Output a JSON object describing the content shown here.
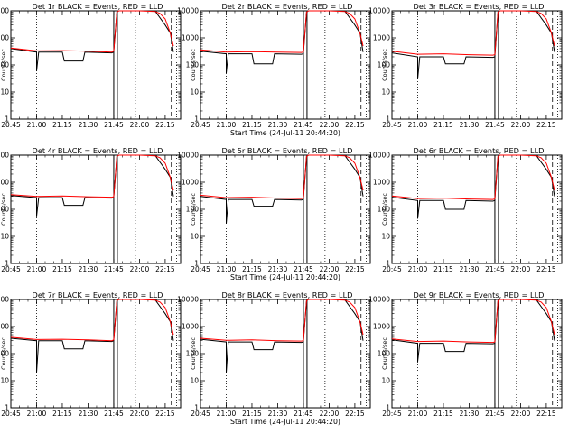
{
  "chart_data": [
    {
      "type": "line",
      "title": "Det 1r BLACK = Events, RED = LLD",
      "xlabel": "",
      "ylabel": "Counts/sec",
      "yscale": "log",
      "ylim": [
        1,
        10000
      ],
      "x_ticks": [
        "20:45",
        "21:00",
        "21:15",
        "21:30",
        "21:45",
        "22:00",
        "22:15"
      ],
      "y_ticks": [
        "1",
        "10",
        "100",
        "1000",
        "10000"
      ],
      "series": [
        {
          "name": "Events",
          "color": "#000000",
          "x": [
            20.75,
            21.0,
            21.0,
            21.02,
            21.25,
            21.27,
            21.45,
            21.47,
            21.73,
            21.75,
            21.78,
            21.8,
            22.0,
            22.15,
            22.25,
            22.3,
            22.33
          ],
          "y": [
            400,
            300,
            60,
            300,
            300,
            140,
            140,
            300,
            280,
            300,
            9000,
            10000,
            10000,
            10000,
            3000,
            1500,
            300
          ]
        },
        {
          "name": "LLD",
          "color": "#ff0000",
          "x": [
            20.75,
            21.0,
            21.25,
            21.5,
            21.73,
            21.75,
            21.78,
            21.8,
            22.0,
            22.15,
            22.2,
            22.25,
            22.3,
            22.33
          ],
          "y": [
            420,
            330,
            340,
            320,
            300,
            320,
            9000,
            10000,
            10000,
            9500,
            8000,
            5000,
            1500,
            500
          ]
        }
      ]
    },
    {
      "type": "line",
      "title": "Det 2r BLACK = Events, RED = LLD",
      "xlabel": "Start Time (24-Jul-11 20:44:20)",
      "ylabel": "Counts/sec",
      "yscale": "log",
      "ylim": [
        1,
        10000
      ],
      "x_ticks": [
        "20:45",
        "21:00",
        "21:15",
        "21:30",
        "21:45",
        "22:00",
        "22:15"
      ],
      "y_ticks": [
        "1",
        "10",
        "100",
        "1000",
        "10000"
      ],
      "series": [
        {
          "name": "Events",
          "color": "#000000",
          "x": [
            20.75,
            21.0,
            21.0,
            21.02,
            21.25,
            21.27,
            21.45,
            21.47,
            21.73,
            21.75,
            21.78,
            21.8,
            22.0,
            22.15,
            22.25,
            22.3,
            22.33
          ],
          "y": [
            320,
            260,
            50,
            260,
            260,
            110,
            110,
            260,
            250,
            260,
            9000,
            10000,
            10000,
            10000,
            3000,
            1500,
            300
          ]
        },
        {
          "name": "LLD",
          "color": "#ff0000",
          "x": [
            20.75,
            21.0,
            21.25,
            21.5,
            21.73,
            21.75,
            21.78,
            21.8,
            22.0,
            22.15,
            22.2,
            22.25,
            22.3,
            22.33
          ],
          "y": [
            360,
            300,
            310,
            300,
            290,
            300,
            9000,
            10000,
            10000,
            9500,
            8000,
            5000,
            1500,
            500
          ]
        }
      ]
    },
    {
      "type": "line",
      "title": "Det 3r BLACK = Events, RED = LLD",
      "xlabel": "",
      "ylabel": "Counts/sec",
      "yscale": "log",
      "ylim": [
        1,
        10000
      ],
      "x_ticks": [
        "20:45",
        "21:00",
        "21:15",
        "21:30",
        "21:45",
        "22:00",
        "22:15"
      ],
      "y_ticks": [
        "1",
        "10",
        "100",
        "1000",
        "10000"
      ],
      "series": [
        {
          "name": "Events",
          "color": "#000000",
          "x": [
            20.75,
            21.0,
            21.0,
            21.02,
            21.25,
            21.27,
            21.45,
            21.47,
            21.73,
            21.75,
            21.78,
            21.8,
            22.0,
            22.15,
            22.25,
            22.3,
            22.33
          ],
          "y": [
            280,
            200,
            30,
            200,
            200,
            110,
            110,
            200,
            190,
            200,
            9000,
            10000,
            10000,
            10000,
            3000,
            1500,
            300
          ]
        },
        {
          "name": "LLD",
          "color": "#ff0000",
          "x": [
            20.75,
            21.0,
            21.25,
            21.5,
            21.73,
            21.75,
            21.78,
            21.8,
            22.0,
            22.15,
            22.2,
            22.25,
            22.3,
            22.33
          ],
          "y": [
            320,
            250,
            260,
            240,
            230,
            240,
            9000,
            10000,
            10000,
            9500,
            8000,
            5000,
            1500,
            500
          ]
        }
      ]
    },
    {
      "type": "line",
      "title": "Det 4r BLACK = Events, RED = LLD",
      "xlabel": "",
      "ylabel": "Counts/sec",
      "yscale": "log",
      "ylim": [
        1,
        10000
      ],
      "x_ticks": [
        "20:45",
        "21:00",
        "21:15",
        "21:30",
        "21:45",
        "22:00",
        "22:15"
      ],
      "y_ticks": [
        "1",
        "10",
        "100",
        "1000",
        "10000"
      ],
      "series": [
        {
          "name": "Events",
          "color": "#000000",
          "x": [
            20.75,
            21.0,
            21.0,
            21.02,
            21.25,
            21.27,
            21.45,
            21.47,
            21.73,
            21.75,
            21.78,
            21.8,
            22.0,
            22.15,
            22.25,
            22.3,
            22.33
          ],
          "y": [
            320,
            270,
            55,
            270,
            270,
            140,
            140,
            270,
            260,
            270,
            9000,
            10000,
            10000,
            10000,
            3000,
            1500,
            300
          ]
        },
        {
          "name": "LLD",
          "color": "#ff0000",
          "x": [
            20.75,
            21.0,
            21.25,
            21.5,
            21.73,
            21.75,
            21.78,
            21.8,
            22.0,
            22.15,
            22.2,
            22.25,
            22.3,
            22.33
          ],
          "y": [
            350,
            300,
            310,
            290,
            280,
            290,
            9000,
            10000,
            10000,
            9500,
            8000,
            5000,
            1500,
            500
          ]
        }
      ]
    },
    {
      "type": "line",
      "title": "Det 5r BLACK = Events, RED = LLD",
      "xlabel": "Start Time (24-Jul-11 20:44:20)",
      "ylabel": "Counts/sec",
      "yscale": "log",
      "ylim": [
        1,
        10000
      ],
      "x_ticks": [
        "20:45",
        "21:00",
        "21:15",
        "21:30",
        "21:45",
        "22:00",
        "22:15"
      ],
      "y_ticks": [
        "1",
        "10",
        "100",
        "1000",
        "10000"
      ],
      "series": [
        {
          "name": "Events",
          "color": "#000000",
          "x": [
            20.75,
            21.0,
            21.0,
            21.02,
            21.25,
            21.27,
            21.45,
            21.47,
            21.73,
            21.75,
            21.78,
            21.8,
            22.0,
            22.15,
            22.25,
            22.3,
            22.33
          ],
          "y": [
            300,
            230,
            30,
            230,
            230,
            130,
            130,
            230,
            220,
            230,
            9000,
            10000,
            10000,
            10000,
            3000,
            1500,
            300
          ]
        },
        {
          "name": "LLD",
          "color": "#ff0000",
          "x": [
            20.75,
            21.0,
            21.25,
            21.5,
            21.73,
            21.75,
            21.78,
            21.8,
            22.0,
            22.15,
            22.2,
            22.25,
            22.3,
            22.33
          ],
          "y": [
            330,
            270,
            280,
            260,
            250,
            260,
            9000,
            10000,
            10000,
            9500,
            8000,
            5000,
            1500,
            500
          ]
        }
      ]
    },
    {
      "type": "line",
      "title": "Det 6r BLACK = Events, RED = LLD",
      "xlabel": "",
      "ylabel": "Counts/sec",
      "yscale": "log",
      "ylim": [
        1,
        10000
      ],
      "x_ticks": [
        "20:45",
        "21:00",
        "21:15",
        "21:30",
        "21:45",
        "22:00",
        "22:15"
      ],
      "y_ticks": [
        "1",
        "10",
        "100",
        "1000",
        "10000"
      ],
      "series": [
        {
          "name": "Events",
          "color": "#000000",
          "x": [
            20.75,
            21.0,
            21.0,
            21.02,
            21.25,
            21.27,
            21.45,
            21.47,
            21.73,
            21.75,
            21.78,
            21.8,
            22.0,
            22.15,
            22.25,
            22.3,
            22.33
          ],
          "y": [
            280,
            210,
            45,
            210,
            210,
            100,
            100,
            210,
            200,
            210,
            9000,
            10000,
            10000,
            10000,
            3000,
            1500,
            300
          ]
        },
        {
          "name": "LLD",
          "color": "#ff0000",
          "x": [
            20.75,
            21.0,
            21.25,
            21.5,
            21.73,
            21.75,
            21.78,
            21.8,
            22.0,
            22.15,
            22.2,
            22.25,
            22.3,
            22.33
          ],
          "y": [
            310,
            250,
            260,
            240,
            230,
            240,
            9000,
            10000,
            10000,
            9500,
            8000,
            5000,
            1500,
            500
          ]
        }
      ]
    },
    {
      "type": "line",
      "title": "Det 7r BLACK = Events, RED = LLD",
      "xlabel": "",
      "ylabel": "Counts/sec",
      "yscale": "log",
      "ylim": [
        1,
        10000
      ],
      "x_ticks": [
        "20:45",
        "21:00",
        "21:15",
        "21:30",
        "21:45",
        "22:00",
        "22:15"
      ],
      "y_ticks": [
        "1",
        "10",
        "100",
        "1000",
        "10000"
      ],
      "series": [
        {
          "name": "Events",
          "color": "#000000",
          "x": [
            20.75,
            21.0,
            21.0,
            21.02,
            21.25,
            21.27,
            21.45,
            21.47,
            21.73,
            21.75,
            21.78,
            21.8,
            22.0,
            22.15,
            22.25,
            22.3,
            22.33
          ],
          "y": [
            370,
            300,
            20,
            300,
            300,
            150,
            150,
            300,
            280,
            300,
            9000,
            10000,
            10000,
            10000,
            3000,
            1500,
            300
          ]
        },
        {
          "name": "LLD",
          "color": "#ff0000",
          "x": [
            20.75,
            21.0,
            21.25,
            21.5,
            21.73,
            21.75,
            21.78,
            21.8,
            22.0,
            22.15,
            22.2,
            22.25,
            22.3,
            22.33
          ],
          "y": [
            400,
            330,
            340,
            320,
            300,
            320,
            9000,
            10000,
            10000,
            9500,
            8000,
            5000,
            1500,
            500
          ]
        }
      ]
    },
    {
      "type": "line",
      "title": "Det 8r BLACK = Events, RED = LLD",
      "xlabel": "Start Time (24-Jul-11 20:44:20)",
      "ylabel": "Counts/sec",
      "yscale": "log",
      "ylim": [
        1,
        10000
      ],
      "x_ticks": [
        "20:45",
        "21:00",
        "21:15",
        "21:30",
        "21:45",
        "22:00",
        "22:15"
      ],
      "y_ticks": [
        "1",
        "10",
        "100",
        "1000",
        "10000"
      ],
      "series": [
        {
          "name": "Events",
          "color": "#000000",
          "x": [
            20.75,
            21.0,
            21.0,
            21.02,
            21.25,
            21.27,
            21.45,
            21.47,
            21.73,
            21.75,
            21.78,
            21.8,
            22.0,
            22.15,
            22.25,
            22.3,
            22.33
          ],
          "y": [
            340,
            270,
            20,
            270,
            270,
            140,
            140,
            270,
            260,
            270,
            9000,
            10000,
            10000,
            10000,
            3000,
            1500,
            300
          ]
        },
        {
          "name": "LLD",
          "color": "#ff0000",
          "x": [
            20.75,
            21.0,
            21.25,
            21.5,
            21.73,
            21.75,
            21.78,
            21.8,
            22.0,
            22.15,
            22.2,
            22.25,
            22.3,
            22.33
          ],
          "y": [
            370,
            310,
            320,
            300,
            290,
            300,
            9000,
            10000,
            10000,
            9500,
            8000,
            5000,
            1500,
            500
          ]
        }
      ]
    },
    {
      "type": "line",
      "title": "Det 9r BLACK = Events, RED = LLD",
      "xlabel": "",
      "ylabel": "Counts/sec",
      "yscale": "log",
      "ylim": [
        1,
        10000
      ],
      "x_ticks": [
        "20:45",
        "21:00",
        "21:15",
        "21:30",
        "21:45",
        "22:00",
        "22:15"
      ],
      "y_ticks": [
        "1",
        "10",
        "100",
        "1000",
        "10000"
      ],
      "series": [
        {
          "name": "Events",
          "color": "#000000",
          "x": [
            20.75,
            21.0,
            21.0,
            21.02,
            21.25,
            21.27,
            21.45,
            21.47,
            21.73,
            21.75,
            21.78,
            21.8,
            22.0,
            22.15,
            22.25,
            22.3,
            22.33
          ],
          "y": [
            320,
            240,
            50,
            240,
            240,
            120,
            120,
            240,
            230,
            240,
            9000,
            10000,
            10000,
            10000,
            3000,
            1500,
            300
          ]
        },
        {
          "name": "LLD",
          "color": "#ff0000",
          "x": [
            20.75,
            21.0,
            21.25,
            21.5,
            21.73,
            21.75,
            21.78,
            21.8,
            22.0,
            22.15,
            22.2,
            22.25,
            22.3,
            22.33
          ],
          "y": [
            350,
            280,
            290,
            270,
            260,
            270,
            9000,
            10000,
            10000,
            9500,
            8000,
            5000,
            1500,
            500
          ]
        }
      ]
    }
  ]
}
